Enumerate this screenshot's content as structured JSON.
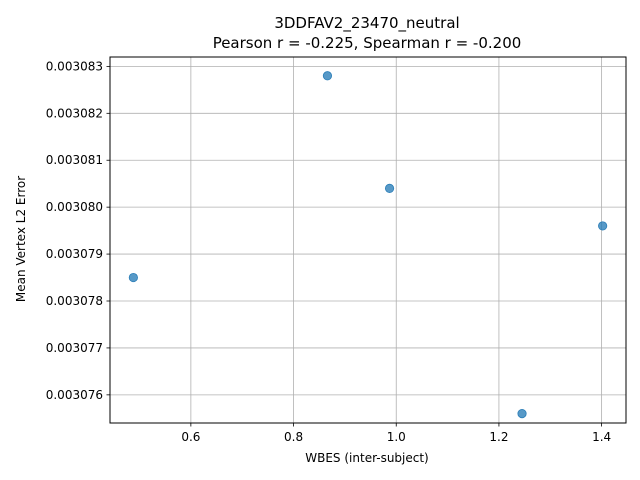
{
  "chart_data": {
    "type": "scatter",
    "title": "3DDFAV2_23470_neutral",
    "subtitle": "Pearson r = -0.225, Spearman r = -0.200",
    "xlabel": "WBES (inter-subject)",
    "ylabel": "Mean Vertex L2 Error",
    "xlim": [
      0.4425,
      1.4475
    ],
    "ylim": [
      0.0030754,
      0.0030832
    ],
    "xticks": [
      0.6,
      0.8,
      1.0,
      1.2,
      1.4
    ],
    "xtick_labels": [
      "0.6",
      "0.8",
      "1.0",
      "1.2",
      "1.4"
    ],
    "yticks": [
      0.003076,
      0.003077,
      0.003078,
      0.003079,
      0.00308,
      0.003081,
      0.003082,
      0.003083
    ],
    "ytick_labels": [
      "0.003076",
      "0.003077",
      "0.003078",
      "0.003079",
      "0.003080",
      "0.003081",
      "0.003082",
      "0.003083"
    ],
    "grid": true,
    "marker_color": "#1f77b4",
    "points": [
      {
        "x": 0.488,
        "y": 0.0030785
      },
      {
        "x": 0.866,
        "y": 0.0030828
      },
      {
        "x": 0.987,
        "y": 0.0030804
      },
      {
        "x": 1.245,
        "y": 0.0030756
      },
      {
        "x": 1.402,
        "y": 0.0030796
      }
    ]
  }
}
